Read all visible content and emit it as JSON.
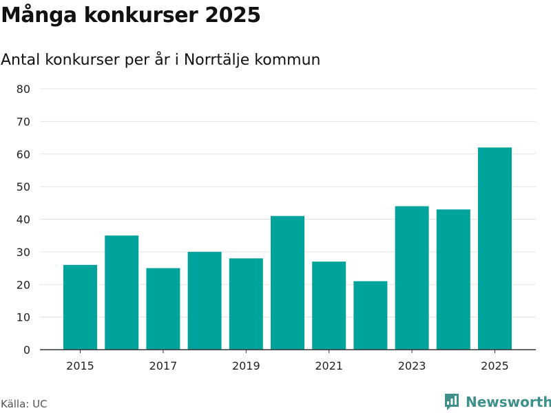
{
  "header": {
    "title": "Många konkurser 2025",
    "subtitle": "Antal konkurser per år i Norrtälje kommun"
  },
  "footer": {
    "source": "Källa: UC",
    "brand": "Newsworthy",
    "brand_icon": "bar-chart-logo-icon"
  },
  "colors": {
    "bar": "#00a39b",
    "gridline": "#e3e3e3",
    "axis": "#333333",
    "brand": "#3f8f8a"
  },
  "chart_data": {
    "type": "bar",
    "title": "Många konkurser 2025",
    "subtitle": "Antal konkurser per år i Norrtälje kommun",
    "categories": [
      "2015",
      "2016",
      "2017",
      "2018",
      "2019",
      "2020",
      "2021",
      "2022",
      "2023",
      "2024",
      "2025"
    ],
    "values": [
      26,
      35,
      25,
      30,
      28,
      41,
      27,
      21,
      44,
      43,
      62
    ],
    "x_tick_labels": [
      "2015",
      "2017",
      "2019",
      "2021",
      "2023",
      "2025"
    ],
    "y_ticks": [
      0,
      10,
      20,
      30,
      40,
      50,
      60,
      70,
      80
    ],
    "ylim": [
      0,
      80
    ],
    "grid": true,
    "legend": "none"
  }
}
